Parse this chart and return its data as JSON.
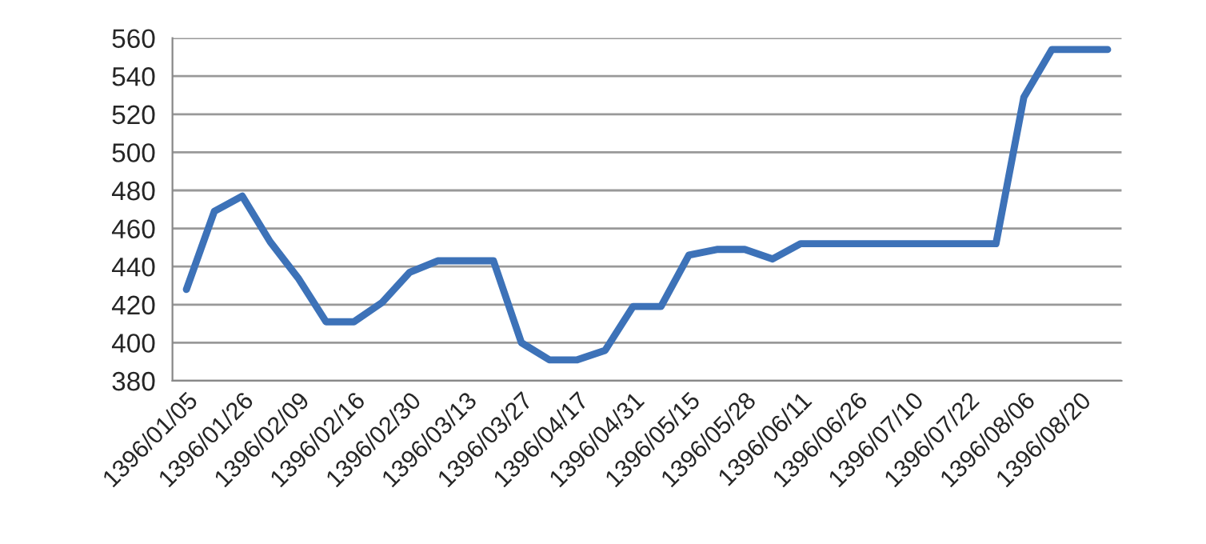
{
  "chart_data": {
    "type": "line",
    "categories": [
      "1396/01/05",
      null,
      "1396/01/26",
      null,
      "1396/02/09",
      null,
      "1396/02/16",
      null,
      "1396/02/30",
      null,
      "1396/03/13",
      null,
      "1396/03/27",
      null,
      "1396/04/17",
      null,
      "1396/04/31",
      null,
      "1396/05/15",
      null,
      "1396/05/28",
      null,
      "1396/06/11",
      null,
      "1396/06/26",
      null,
      "1396/07/10",
      null,
      "1396/07/22",
      null,
      "1396/08/06",
      null,
      "1396/08/20",
      null
    ],
    "series": [
      {
        "color": "#3d72b8",
        "values": [
          428,
          469,
          477,
          453,
          434,
          411,
          411,
          421,
          437,
          443,
          443,
          443,
          400,
          391,
          391,
          396,
          419,
          419,
          446,
          449,
          449,
          444,
          452,
          452,
          452,
          452,
          452,
          452,
          452,
          452,
          529,
          554,
          554,
          554
        ]
      }
    ],
    "ylim": [
      380,
      560
    ],
    "yticks": [
      380,
      400,
      420,
      440,
      460,
      480,
      500,
      520,
      540,
      560
    ],
    "grid": "y",
    "marker": "none",
    "line_style": "solid",
    "legend": false
  }
}
